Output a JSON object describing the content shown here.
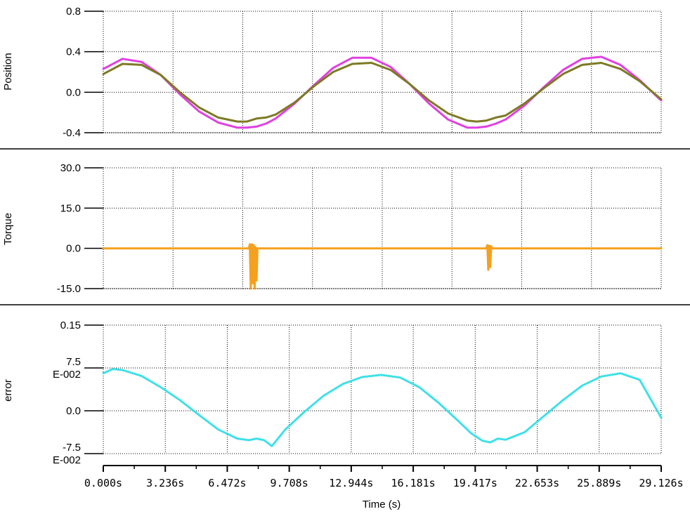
{
  "chart_data": [
    {
      "type": "line",
      "ylabel": "Position",
      "ylim": [
        -0.4,
        0.8
      ],
      "yticks": [
        "0.8",
        "0.4",
        "0.0",
        "-0.4"
      ],
      "grid": true,
      "colors": [
        "#e040e0",
        "#7d7a24"
      ],
      "x": [
        0,
        1,
        2,
        3,
        4,
        5,
        6,
        7,
        7.5,
        8,
        8.5,
        9,
        10,
        11,
        12,
        13,
        14,
        15,
        16,
        17,
        18,
        19,
        19.5,
        20,
        20.5,
        21,
        22,
        23,
        24,
        25,
        26,
        27,
        28,
        29,
        29.126
      ],
      "series": [
        {
          "values": [
            0.23,
            0.33,
            0.3,
            0.17,
            -0.02,
            -0.19,
            -0.3,
            -0.35,
            -0.35,
            -0.34,
            -0.31,
            -0.26,
            -0.11,
            0.07,
            0.24,
            0.34,
            0.34,
            0.25,
            0.08,
            -0.11,
            -0.27,
            -0.35,
            -0.35,
            -0.34,
            -0.31,
            -0.27,
            -0.13,
            0.05,
            0.22,
            0.33,
            0.35,
            0.27,
            0.12,
            -0.06,
            -0.08
          ]
        },
        {
          "values": [
            0.18,
            0.28,
            0.27,
            0.17,
            0.0,
            -0.15,
            -0.25,
            -0.29,
            -0.29,
            -0.26,
            -0.25,
            -0.22,
            -0.1,
            0.06,
            0.2,
            0.28,
            0.29,
            0.22,
            0.08,
            -0.08,
            -0.21,
            -0.28,
            -0.29,
            -0.28,
            -0.25,
            -0.23,
            -0.11,
            0.04,
            0.18,
            0.27,
            0.29,
            0.23,
            0.11,
            -0.05,
            -0.07
          ]
        }
      ]
    },
    {
      "type": "line",
      "ylabel": "Torque",
      "ylim": [
        -15.0,
        30.0
      ],
      "yticks": [
        "30.0",
        "15.0",
        "0.0",
        "-15.0"
      ],
      "grid": true,
      "colors": [
        "#f5a01e"
      ],
      "x": [
        0,
        7.6,
        7.65,
        7.7,
        7.75,
        7.8,
        7.85,
        7.9,
        7.95,
        8.0,
        8.05,
        20.0,
        20.05,
        20.1,
        20.15,
        20.2,
        20.25,
        20.3,
        29.126
      ],
      "series": [
        {
          "values": [
            0,
            0,
            1.5,
            -15,
            1.5,
            -13,
            1.2,
            -15,
            0.5,
            -12,
            0,
            0,
            1.2,
            -8,
            1.0,
            -7,
            0.8,
            0,
            0
          ]
        }
      ]
    },
    {
      "type": "line",
      "ylabel": "error",
      "ylim": [
        -0.09,
        0.15
      ],
      "yticks": [
        "0.15",
        "7.5 E-002",
        "0.0",
        "-7.5 E-002"
      ],
      "grid": true,
      "colors": [
        "#3fe0e8"
      ],
      "x": [
        0,
        0.5,
        1,
        2,
        3,
        4,
        5,
        6,
        7,
        7.6,
        8,
        8.4,
        8.8,
        9.5,
        10.5,
        11.5,
        12.5,
        13.5,
        14.5,
        15.5,
        16.5,
        17.5,
        18.5,
        19.2,
        19.8,
        20.2,
        20.6,
        21,
        22,
        23,
        24,
        25,
        26,
        27,
        28,
        29.126
      ],
      "series": [
        {
          "values": [
            0.06,
            0.068,
            0.066,
            0.055,
            0.034,
            0.01,
            -0.018,
            -0.045,
            -0.062,
            -0.065,
            -0.062,
            -0.065,
            -0.076,
            -0.045,
            -0.012,
            0.018,
            0.04,
            0.053,
            0.057,
            0.052,
            0.034,
            0.005,
            -0.028,
            -0.052,
            -0.066,
            -0.069,
            -0.062,
            -0.064,
            -0.05,
            -0.02,
            0.01,
            0.037,
            0.054,
            0.06,
            0.048,
            -0.023
          ]
        }
      ]
    }
  ],
  "xaxis": {
    "label": "Time (s)",
    "xlim": [
      0,
      29.126
    ],
    "ticks": [
      0,
      3.236,
      6.472,
      9.708,
      12.944,
      16.181,
      19.417,
      22.653,
      25.889,
      29.126
    ],
    "tick_labels": [
      "0.000s",
      "3.236s",
      "6.472s",
      "9.708s",
      "12.944s",
      "16.181s",
      "19.417s",
      "22.653s",
      "25.889s",
      "29.126s"
    ]
  }
}
